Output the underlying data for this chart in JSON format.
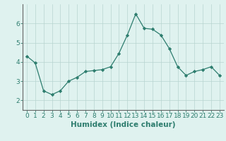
{
  "x": [
    0,
    1,
    2,
    3,
    4,
    5,
    6,
    7,
    8,
    9,
    10,
    11,
    12,
    13,
    14,
    15,
    16,
    17,
    18,
    19,
    20,
    21,
    22,
    23
  ],
  "y": [
    4.3,
    3.95,
    2.5,
    2.3,
    2.5,
    3.0,
    3.2,
    3.5,
    3.55,
    3.6,
    3.75,
    4.45,
    5.4,
    6.5,
    5.75,
    5.7,
    5.4,
    4.7,
    3.75,
    3.3,
    3.5,
    3.6,
    3.75,
    3.3
  ],
  "line_color": "#2d7d6e",
  "marker": "D",
  "markersize": 2.2,
  "bg_color": "#dff2ef",
  "grid_color": "#b8d4d0",
  "xlabel": "Humidex (Indice chaleur)",
  "xlabel_fontsize": 7.5,
  "tick_fontsize": 6.5,
  "xlim": [
    -0.5,
    23.5
  ],
  "ylim": [
    1.5,
    7.0
  ],
  "yticks": [
    2,
    3,
    4,
    5,
    6
  ],
  "xticks": [
    0,
    1,
    2,
    3,
    4,
    5,
    6,
    7,
    8,
    9,
    10,
    11,
    12,
    13,
    14,
    15,
    16,
    17,
    18,
    19,
    20,
    21,
    22,
    23
  ]
}
